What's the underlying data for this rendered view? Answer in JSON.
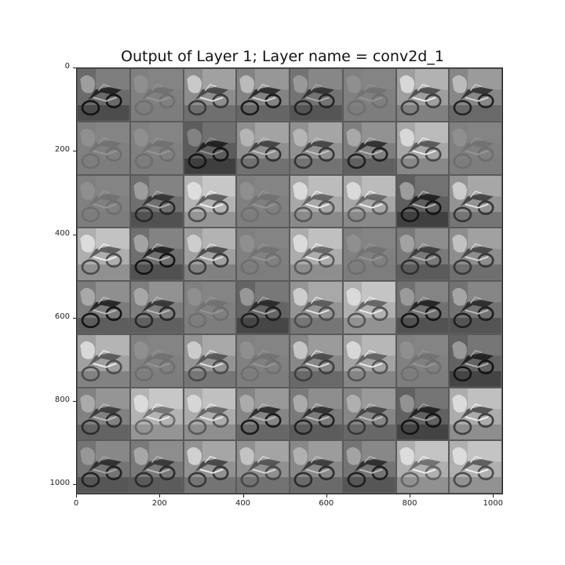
{
  "title": "Output of Layer 1; Layer name = conv2d_1",
  "image": {
    "rows": 8,
    "cols": 8,
    "content": "grid of grayscale convolution feature maps of a motorcycle scene"
  },
  "axes": {
    "y_ticks": [
      "0",
      "200",
      "400",
      "600",
      "800",
      "1000"
    ],
    "x_ticks": [
      "0",
      "200",
      "400",
      "600",
      "800",
      "1000"
    ],
    "y_values": [
      0,
      200,
      400,
      600,
      800,
      1000
    ],
    "x_values": [
      0,
      200,
      400,
      600,
      800,
      1000
    ],
    "range": [
      0,
      1024
    ]
  }
}
